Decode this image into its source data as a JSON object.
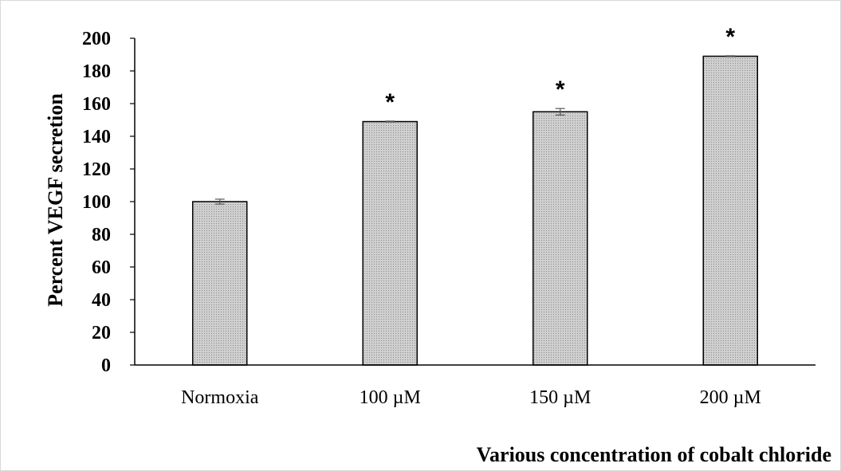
{
  "chart_data": {
    "type": "bar",
    "title": "",
    "xlabel": "Various concentration of cobalt chloride",
    "ylabel": "Percent VEGF secretion",
    "categories": [
      "Normoxia",
      "100 µM",
      "150 µM",
      "200 µM"
    ],
    "values": [
      100,
      149,
      155,
      189
    ],
    "errors": [
      1.5,
      0.3,
      2,
      0.3
    ],
    "annotations": [
      "",
      "*",
      "*",
      "*"
    ],
    "ylim": [
      0,
      200
    ],
    "yticks": [
      0,
      20,
      40,
      60,
      80,
      100,
      120,
      140,
      160,
      180,
      200
    ],
    "yticks_labels": [
      "0",
      "20",
      "40",
      "60",
      "80",
      "100",
      "120",
      "140",
      "160",
      "180",
      "200"
    ],
    "grid": false,
    "legend": "none",
    "bar_fill": "#c8c8c8",
    "bar_edge": "#000000"
  }
}
